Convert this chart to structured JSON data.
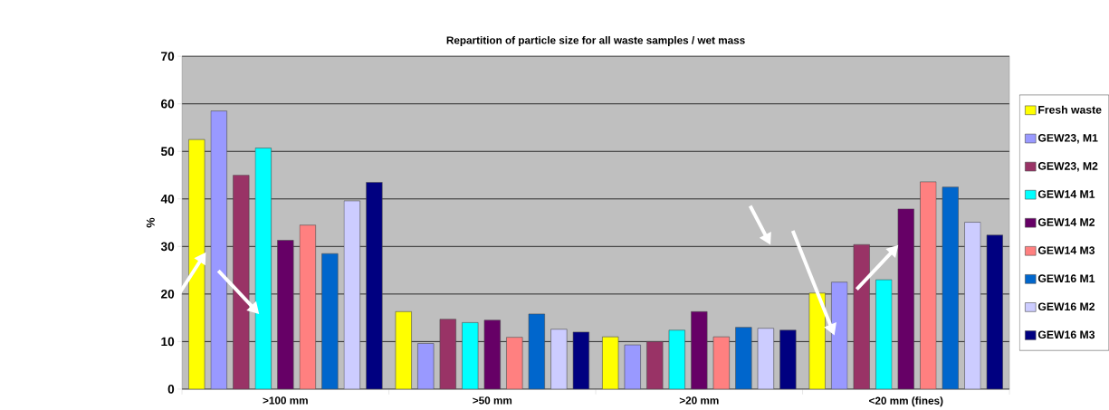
{
  "chart_data": {
    "type": "bar",
    "title": "Repartition of particle size for all waste samples / wet mass",
    "ylabel": "%",
    "categories": [
      ">100 mm",
      ">50 mm",
      ">20 mm",
      "<20 mm (fines)"
    ],
    "series": [
      {
        "name": "Fresh waste",
        "color": "#ffff00",
        "values": [
          52.5,
          16.3,
          11.0,
          20.2
        ]
      },
      {
        "name": "GEW23, M1",
        "color": "#9999ff",
        "values": [
          58.5,
          9.6,
          9.3,
          22.5
        ]
      },
      {
        "name": "GEW23, M2",
        "color": "#993366",
        "values": [
          45.0,
          14.7,
          10.0,
          30.4
        ]
      },
      {
        "name": "GEW14 M1",
        "color": "#00ffff",
        "values": [
          50.7,
          14.0,
          12.4,
          23.0
        ]
      },
      {
        "name": "GEW14 M2",
        "color": "#660066",
        "values": [
          31.3,
          14.5,
          16.3,
          37.9
        ]
      },
      {
        "name": "GEW14 M3",
        "color": "#ff8080",
        "values": [
          34.5,
          10.9,
          11.0,
          43.6
        ]
      },
      {
        "name": "GEW16 M1",
        "color": "#0066cc",
        "values": [
          28.5,
          15.8,
          13.0,
          42.5
        ]
      },
      {
        "name": "GEW16 M2",
        "color": "#ccccff",
        "values": [
          39.6,
          12.6,
          12.8,
          35.1
        ]
      },
      {
        "name": "GEW16 M3",
        "color": "#000080",
        "values": [
          43.5,
          12.0,
          12.4,
          32.4
        ]
      }
    ],
    "ylim": [
      0,
      70
    ],
    "yticks": [
      0,
      10,
      20,
      30,
      40,
      50,
      60,
      70
    ],
    "grid": "y",
    "legend": "right"
  }
}
